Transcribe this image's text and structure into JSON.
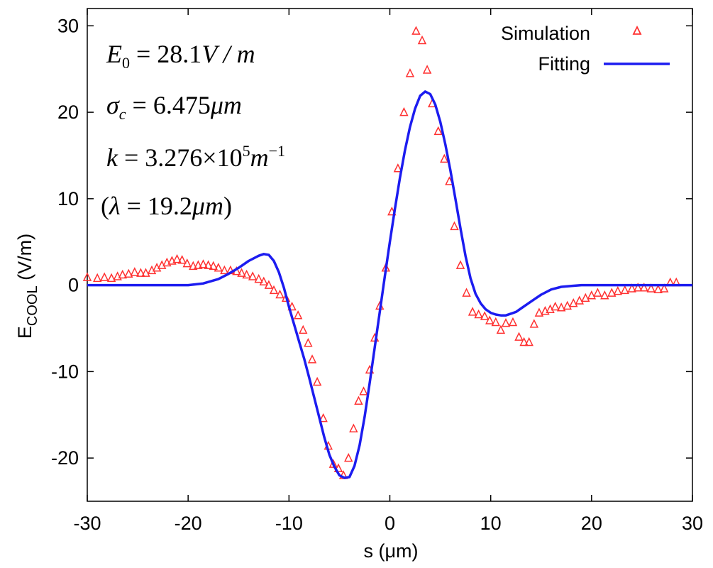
{
  "chart_data": {
    "type": "line",
    "title": "",
    "xlabel": "s (μm)",
    "ylabel_main": "E",
    "ylabel_sub": "COOL",
    "ylabel_unit": " (V/m)",
    "xlim": [
      -30,
      30
    ],
    "ylim": [
      -25,
      32
    ],
    "xticks": [
      -30,
      -20,
      -10,
      0,
      10,
      20,
      30
    ],
    "yticks": [
      -20,
      -10,
      0,
      10,
      20,
      30
    ],
    "grid": false,
    "legend_position": "top-right",
    "series": [
      {
        "name": "Simulation",
        "style": "triangle-markers",
        "color": "#ff3030",
        "x": [
          -30,
          -29,
          -28.3,
          -27.6,
          -27,
          -26.5,
          -25.9,
          -25.3,
          -24.7,
          -24.2,
          -23.6,
          -23.1,
          -22.6,
          -22.1,
          -21.6,
          -21.1,
          -20.6,
          -20.1,
          -19.5,
          -19,
          -18.5,
          -18,
          -17.5,
          -17,
          -16.4,
          -15.8,
          -15.2,
          -14.7,
          -14.2,
          -13.6,
          -13,
          -12.5,
          -12,
          -11.5,
          -10.9,
          -10.3,
          -9.7,
          -9.1,
          -8.6,
          -8.1,
          -7.7,
          -7.2,
          -6.6,
          -6.1,
          -5.6,
          -5.1,
          -4.6,
          -4.1,
          -3.6,
          -3.1,
          -2.6,
          -2,
          -1.5,
          -1,
          -0.4,
          0.2,
          0.8,
          1.4,
          2,
          2.6,
          3.2,
          3.7,
          4.2,
          4.8,
          5.4,
          5.9,
          6.4,
          7,
          7.6,
          8.2,
          8.8,
          9.4,
          9.9,
          10.5,
          11,
          11.5,
          12.2,
          12.8,
          13.3,
          13.8,
          14.3,
          14.8,
          15.4,
          15.9,
          16.4,
          17,
          17.6,
          18.2,
          18.8,
          19.4,
          20,
          20.6,
          21.3,
          22,
          22.6,
          23.3,
          24,
          24.6,
          25.2,
          25.9,
          26.6,
          27.2,
          27.8,
          28.4
        ],
        "y": [
          0.9,
          0.8,
          0.9,
          0.8,
          1,
          1.2,
          1.3,
          1.5,
          1.4,
          1.4,
          1.7,
          2,
          2.3,
          2.6,
          2.8,
          3,
          2.9,
          2.5,
          2.2,
          2.3,
          2.4,
          2.3,
          2.2,
          2,
          1.7,
          1.7,
          1.6,
          1.4,
          1.2,
          1,
          0.7,
          0.4,
          0,
          -0.6,
          -1.1,
          -1.5,
          -2.5,
          -3.5,
          -5.2,
          -6.7,
          -8.6,
          -11.2,
          -15.4,
          -18.6,
          -20.7,
          -21.2,
          -22,
          -20,
          -16.6,
          -13.4,
          -12.3,
          -9.8,
          -6.1,
          -2.4,
          2,
          8.5,
          13.5,
          20,
          24.5,
          29.4,
          28.3,
          24.9,
          21,
          17.8,
          14.6,
          12,
          6.8,
          2.3,
          -0.9,
          -3.1,
          -3.4,
          -3.6,
          -4.1,
          -4.3,
          -5.2,
          -4.4,
          -4.3,
          -6,
          -6.6,
          -6.6,
          -4.5,
          -3.2,
          -3,
          -2.8,
          -2.5,
          -2.6,
          -2.4,
          -2.1,
          -1.8,
          -1.5,
          -1.2,
          -0.9,
          -1.2,
          -0.9,
          -0.7,
          -0.6,
          -0.4,
          -0.3,
          -0.3,
          -0.4,
          -0.5,
          -0.4,
          0.3,
          0.3
        ]
      },
      {
        "name": "Fitting",
        "style": "solid-line",
        "color": "#1c1cf0",
        "x": [
          -30,
          -27,
          -24,
          -22,
          -20,
          -18.5,
          -17,
          -16,
          -15,
          -14,
          -13,
          -12.5,
          -12,
          -11.5,
          -11,
          -10.5,
          -10,
          -9.5,
          -9,
          -8.5,
          -8,
          -7.5,
          -7,
          -6.5,
          -6,
          -5.5,
          -5,
          -4.5,
          -4,
          -3.5,
          -3,
          -2.5,
          -2,
          -1.5,
          -1,
          -0.5,
          0,
          0.5,
          1,
          1.5,
          2,
          2.5,
          3,
          3.5,
          4,
          4.5,
          5,
          5.5,
          6,
          6.5,
          7,
          7.5,
          8,
          8.5,
          9,
          9.5,
          10,
          10.5,
          11,
          11.5,
          12,
          12.5,
          13,
          14,
          15,
          16,
          17,
          18,
          19,
          20,
          22,
          24,
          27,
          30
        ],
        "y": [
          0,
          0,
          0,
          0,
          0,
          0.2,
          0.7,
          1.3,
          2,
          2.8,
          3.4,
          3.6,
          3.5,
          2.8,
          1.5,
          -0.3,
          -2.5,
          -4.5,
          -6.5,
          -8.5,
          -10.7,
          -13,
          -15.3,
          -17.6,
          -19.6,
          -21,
          -22,
          -22.3,
          -22.2,
          -20.9,
          -18.5,
          -15.2,
          -11.3,
          -7.2,
          -3.1,
          1,
          5,
          8.8,
          12.4,
          15.6,
          18.3,
          20.4,
          21.9,
          22.4,
          22.1,
          20.9,
          18.9,
          16.3,
          13.3,
          10,
          6.6,
          3.4,
          0.8,
          -1,
          -2.1,
          -2.8,
          -3.2,
          -3.4,
          -3.5,
          -3.5,
          -3.3,
          -3.1,
          -2.7,
          -1.9,
          -1.1,
          -0.5,
          -0.2,
          -0.1,
          0,
          0,
          0,
          0,
          0,
          0
        ]
      }
    ],
    "annotations": {
      "line1": {
        "sym": "E",
        "sub": "0",
        "rest": " = 28.1",
        "unit": "V / m"
      },
      "line2": {
        "sym": "σ",
        "sub": "c",
        "rest": " = 6.475",
        "unit": "μm"
      },
      "line3": {
        "sym": "k",
        "rest": " = 3.276×10",
        "exp": "5",
        "unit": "m",
        "unit_exp": "−1"
      },
      "line4": {
        "open": "(",
        "sym": "λ",
        "rest": " = 19.2",
        "unit": "μm",
        "close": ")"
      }
    }
  }
}
